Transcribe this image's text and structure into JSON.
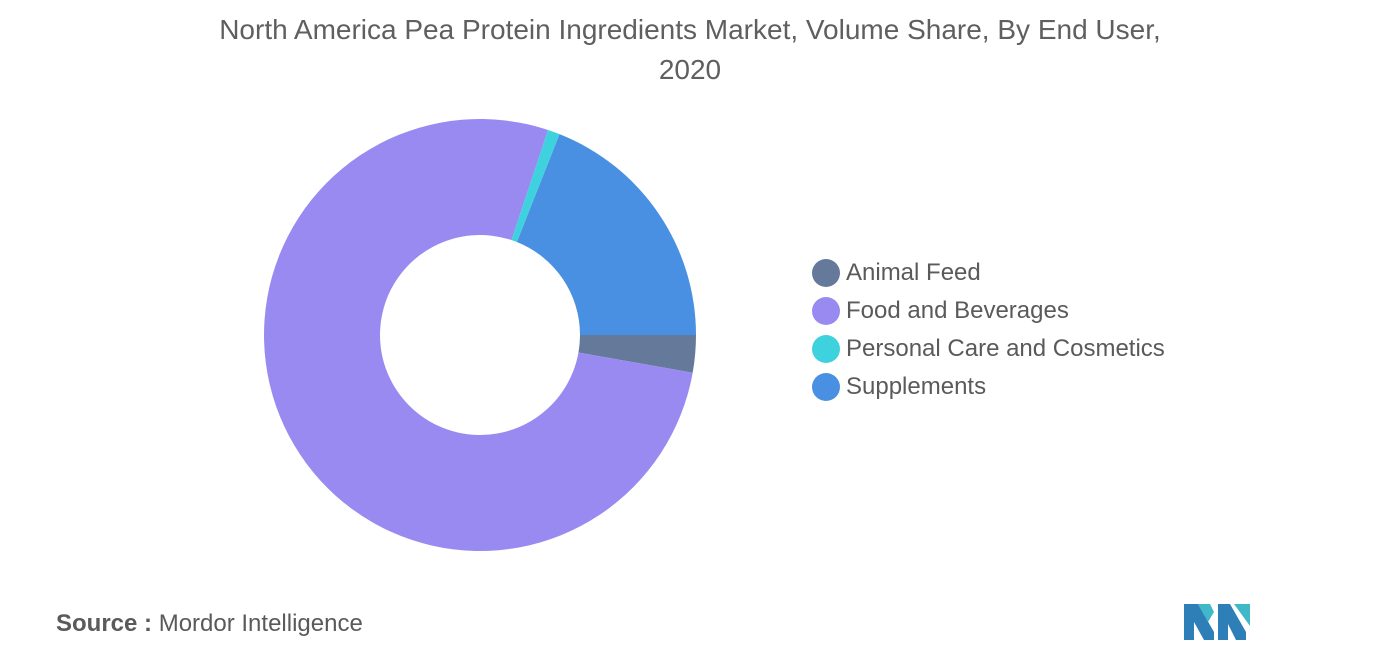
{
  "chart_data": {
    "type": "pie",
    "variant": "donut",
    "title": "North America Pea Protein Ingredients Market, Volume Share, By End User, 2020",
    "categories": [
      "Animal Feed",
      "Food and Beverages",
      "Personal Care and Cosmetics",
      "Supplements"
    ],
    "values": [
      2.8,
      77.3,
      0.9,
      19.0
    ],
    "colors": [
      "#65799b",
      "#998af2",
      "#3ed2de",
      "#4a90e2"
    ],
    "start_angle_deg": 90,
    "direction": "clockwise",
    "legend_position": "right"
  },
  "source": {
    "label": "Source :",
    "value": "Mordor Intelligence"
  }
}
